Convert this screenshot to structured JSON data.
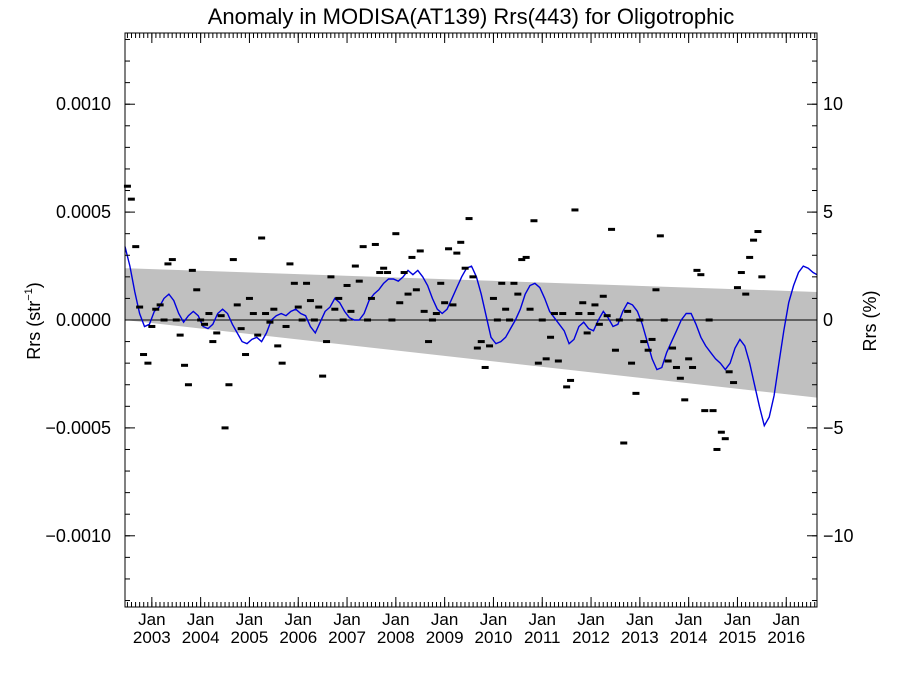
{
  "chart_data": {
    "type": "line",
    "title": "Anomaly in MODISA(AT139) Rrs(443) for Oligotrophic",
    "ylabel_left_base": "Rrs (str",
    "ylabel_left_sup": "−1",
    "ylabel_left_end": ")",
    "ylabel_right": "Rrs (%)",
    "xlim": [
      2002.45,
      2016.63
    ],
    "ylim": [
      -0.00133,
      0.00133
    ],
    "y2lim": [
      -13.3,
      13.3
    ],
    "x_tick_label": "Jan",
    "x_tick_years": [
      "2003",
      "2004",
      "2005",
      "2006",
      "2007",
      "2008",
      "2009",
      "2010",
      "2011",
      "2012",
      "2013",
      "2014",
      "2015",
      "2016"
    ],
    "y_ticks": [
      0.001,
      0.0005,
      0.0,
      -0.0005,
      -0.001
    ],
    "y_tick_labels": [
      "0.0010",
      "0.0005",
      "0.0000",
      "−0.0005",
      "−0.0010"
    ],
    "y2_ticks": [
      10,
      5,
      0,
      -5,
      -10
    ],
    "y2_tick_labels": [
      "10",
      "5",
      "0",
      "−5",
      "−10"
    ],
    "zero_line": 0,
    "band": {
      "upper": [
        [
          2002.45,
          0.00024
        ],
        [
          2016.63,
          0.00013
        ]
      ],
      "lower": [
        [
          2002.45,
          0.0
        ],
        [
          2016.63,
          -0.00036
        ]
      ]
    },
    "series": [
      {
        "color": "#0000dd",
        "points": [
          [
            2002.45,
            0.00034
          ],
          [
            2002.55,
            0.00025
          ],
          [
            2002.65,
            0.00013
          ],
          [
            2002.75,
            3e-05
          ],
          [
            2002.85,
            -3e-05
          ],
          [
            2002.95,
            -2e-05
          ],
          [
            2003.05,
            4e-05
          ],
          [
            2003.15,
            6e-05
          ],
          [
            2003.25,
            0.0001
          ],
          [
            2003.35,
            0.00012
          ],
          [
            2003.45,
            9e-05
          ],
          [
            2003.55,
            3e-05
          ],
          [
            2003.65,
            -1e-05
          ],
          [
            2003.75,
            2e-05
          ],
          [
            2003.85,
            4e-05
          ],
          [
            2003.95,
            2e-05
          ],
          [
            2004.05,
            -3e-05
          ],
          [
            2004.15,
            -4e-05
          ],
          [
            2004.25,
            -2e-05
          ],
          [
            2004.35,
            3e-05
          ],
          [
            2004.45,
            5e-05
          ],
          [
            2004.55,
            3e-05
          ],
          [
            2004.65,
            -2e-05
          ],
          [
            2004.75,
            -6e-05
          ],
          [
            2004.85,
            -0.0001
          ],
          [
            2004.95,
            -0.00011
          ],
          [
            2005.05,
            -9e-05
          ],
          [
            2005.15,
            -8e-05
          ],
          [
            2005.25,
            -0.0001
          ],
          [
            2005.35,
            -6e-05
          ],
          [
            2005.45,
            0.0
          ],
          [
            2005.55,
            2e-05
          ],
          [
            2005.65,
            3e-05
          ],
          [
            2005.75,
            2e-05
          ],
          [
            2005.85,
            4e-05
          ],
          [
            2005.95,
            5e-05
          ],
          [
            2006.05,
            3e-05
          ],
          [
            2006.15,
            2e-05
          ],
          [
            2006.25,
            -3e-05
          ],
          [
            2006.35,
            -6e-05
          ],
          [
            2006.45,
            -1e-05
          ],
          [
            2006.55,
            4e-05
          ],
          [
            2006.65,
            6e-05
          ],
          [
            2006.75,
            0.0001
          ],
          [
            2006.85,
            8e-05
          ],
          [
            2006.95,
            4e-05
          ],
          [
            2007.05,
            1e-05
          ],
          [
            2007.15,
            0.0
          ],
          [
            2007.25,
            0.0
          ],
          [
            2007.35,
            3e-05
          ],
          [
            2007.45,
            9e-05
          ],
          [
            2007.55,
            0.00012
          ],
          [
            2007.65,
            0.00014
          ],
          [
            2007.75,
            0.00017
          ],
          [
            2007.85,
            0.00019
          ],
          [
            2007.95,
            0.00019
          ],
          [
            2008.05,
            0.00018
          ],
          [
            2008.15,
            0.0002
          ],
          [
            2008.25,
            0.00023
          ],
          [
            2008.35,
            0.00021
          ],
          [
            2008.45,
            0.00023
          ],
          [
            2008.55,
            0.0002
          ],
          [
            2008.65,
            0.00016
          ],
          [
            2008.75,
            0.0001
          ],
          [
            2008.85,
            5e-05
          ],
          [
            2008.95,
            3e-05
          ],
          [
            2009.05,
            5e-05
          ],
          [
            2009.15,
            0.0001
          ],
          [
            2009.25,
            0.00015
          ],
          [
            2009.35,
            0.0002
          ],
          [
            2009.45,
            0.00024
          ],
          [
            2009.55,
            0.00025
          ],
          [
            2009.65,
            0.0002
          ],
          [
            2009.75,
            0.00012
          ],
          [
            2009.85,
            2e-05
          ],
          [
            2009.95,
            -8e-05
          ],
          [
            2010.05,
            -0.00011
          ],
          [
            2010.15,
            -0.0001
          ],
          [
            2010.25,
            -8e-05
          ],
          [
            2010.35,
            -4e-05
          ],
          [
            2010.45,
            0.0
          ],
          [
            2010.55,
            5e-05
          ],
          [
            2010.65,
            0.00012
          ],
          [
            2010.75,
            0.00016
          ],
          [
            2010.85,
            0.00017
          ],
          [
            2010.95,
            0.00015
          ],
          [
            2011.05,
            0.0001
          ],
          [
            2011.15,
            4e-05
          ],
          [
            2011.25,
            1e-05
          ],
          [
            2011.35,
            -2e-05
          ],
          [
            2011.45,
            -5e-05
          ],
          [
            2011.55,
            -0.00011
          ],
          [
            2011.65,
            -9e-05
          ],
          [
            2011.75,
            -3e-05
          ],
          [
            2011.85,
            -1e-05
          ],
          [
            2011.95,
            -4e-05
          ],
          [
            2012.05,
            -5e-05
          ],
          [
            2012.15,
            0.0
          ],
          [
            2012.25,
            4e-05
          ],
          [
            2012.35,
            1e-05
          ],
          [
            2012.45,
            -3e-05
          ],
          [
            2012.55,
            -2e-05
          ],
          [
            2012.65,
            4e-05
          ],
          [
            2012.75,
            8e-05
          ],
          [
            2012.85,
            7e-05
          ],
          [
            2012.95,
            4e-05
          ],
          [
            2013.05,
            -2e-05
          ],
          [
            2013.15,
            -0.0001
          ],
          [
            2013.25,
            -0.00018
          ],
          [
            2013.35,
            -0.00023
          ],
          [
            2013.45,
            -0.00022
          ],
          [
            2013.55,
            -0.00015
          ],
          [
            2013.65,
            -0.0001
          ],
          [
            2013.75,
            -5e-05
          ],
          [
            2013.85,
            0.0
          ],
          [
            2013.95,
            3e-05
          ],
          [
            2014.05,
            3e-05
          ],
          [
            2014.15,
            -2e-05
          ],
          [
            2014.25,
            -8e-05
          ],
          [
            2014.35,
            -0.00012
          ],
          [
            2014.45,
            -0.00015
          ],
          [
            2014.55,
            -0.00018
          ],
          [
            2014.65,
            -0.0002
          ],
          [
            2014.75,
            -0.00023
          ],
          [
            2014.85,
            -0.0002
          ],
          [
            2014.95,
            -0.00013
          ],
          [
            2015.05,
            -9e-05
          ],
          [
            2015.15,
            -0.00012
          ],
          [
            2015.25,
            -0.0002
          ],
          [
            2015.35,
            -0.0003
          ],
          [
            2015.45,
            -0.0004
          ],
          [
            2015.55,
            -0.00049
          ],
          [
            2015.65,
            -0.00045
          ],
          [
            2015.75,
            -0.00035
          ],
          [
            2015.85,
            -0.0002
          ],
          [
            2015.95,
            -5e-05
          ],
          [
            2016.05,
            8e-05
          ],
          [
            2016.15,
            0.00016
          ],
          [
            2016.25,
            0.00022
          ],
          [
            2016.35,
            0.00025
          ],
          [
            2016.45,
            0.00024
          ],
          [
            2016.55,
            0.00022
          ],
          [
            2016.63,
            0.00021
          ]
        ]
      }
    ],
    "monthly_marks": [
      [
        2002.5,
        0.00062
      ],
      [
        2002.58,
        0.00056
      ],
      [
        2002.67,
        0.00034
      ],
      [
        2002.75,
        6e-05
      ],
      [
        2002.83,
        -0.00016
      ],
      [
        2002.92,
        -0.0002
      ],
      [
        2003.0,
        -3e-05
      ],
      [
        2003.08,
        5e-05
      ],
      [
        2003.17,
        7e-05
      ],
      [
        2003.25,
        0.0
      ],
      [
        2003.33,
        0.00026
      ],
      [
        2003.42,
        0.00028
      ],
      [
        2003.5,
        0.0
      ],
      [
        2003.58,
        -7e-05
      ],
      [
        2003.67,
        -0.00021
      ],
      [
        2003.75,
        -0.0003
      ],
      [
        2003.83,
        0.00023
      ],
      [
        2003.92,
        0.00014
      ],
      [
        2004.0,
        0.0
      ],
      [
        2004.08,
        -2e-05
      ],
      [
        2004.17,
        3e-05
      ],
      [
        2004.25,
        -0.0001
      ],
      [
        2004.33,
        -6e-05
      ],
      [
        2004.42,
        2e-05
      ],
      [
        2004.5,
        -0.0005
      ],
      [
        2004.58,
        -0.0003
      ],
      [
        2004.67,
        0.00028
      ],
      [
        2004.75,
        7e-05
      ],
      [
        2004.83,
        -4e-05
      ],
      [
        2004.92,
        -0.00016
      ],
      [
        2005.0,
        0.0001
      ],
      [
        2005.08,
        3e-05
      ],
      [
        2005.17,
        -7e-05
      ],
      [
        2005.25,
        0.00038
      ],
      [
        2005.33,
        3e-05
      ],
      [
        2005.42,
        -1e-05
      ],
      [
        2005.5,
        5e-05
      ],
      [
        2005.58,
        -0.00012
      ],
      [
        2005.67,
        -0.0002
      ],
      [
        2005.75,
        -3e-05
      ],
      [
        2005.83,
        0.00026
      ],
      [
        2005.92,
        0.00017
      ],
      [
        2006.0,
        6e-05
      ],
      [
        2006.08,
        0.0
      ],
      [
        2006.17,
        0.00017
      ],
      [
        2006.25,
        9e-05
      ],
      [
        2006.33,
        0.0
      ],
      [
        2006.42,
        6e-05
      ],
      [
        2006.5,
        -0.00026
      ],
      [
        2006.58,
        -0.0001
      ],
      [
        2006.67,
        0.0002
      ],
      [
        2006.75,
        5e-05
      ],
      [
        2006.83,
        0.0001
      ],
      [
        2006.92,
        0.0
      ],
      [
        2007.0,
        0.00016
      ],
      [
        2007.08,
        4e-05
      ],
      [
        2007.17,
        0.00025
      ],
      [
        2007.25,
        0.00018
      ],
      [
        2007.33,
        0.00034
      ],
      [
        2007.42,
        0.0
      ],
      [
        2007.5,
        0.0001
      ],
      [
        2007.58,
        0.00035
      ],
      [
        2007.67,
        0.00022
      ],
      [
        2007.75,
        0.00024
      ],
      [
        2007.83,
        0.00022
      ],
      [
        2007.92,
        0.0
      ],
      [
        2008.0,
        0.0004
      ],
      [
        2008.08,
        8e-05
      ],
      [
        2008.17,
        0.00022
      ],
      [
        2008.25,
        0.00012
      ],
      [
        2008.33,
        0.00029
      ],
      [
        2008.42,
        0.00014
      ],
      [
        2008.5,
        0.00032
      ],
      [
        2008.58,
        4e-05
      ],
      [
        2008.67,
        -0.0001
      ],
      [
        2008.75,
        0.0
      ],
      [
        2008.83,
        3e-05
      ],
      [
        2008.92,
        0.00017
      ],
      [
        2009.0,
        8e-05
      ],
      [
        2009.08,
        0.00033
      ],
      [
        2009.17,
        7e-05
      ],
      [
        2009.25,
        0.00031
      ],
      [
        2009.33,
        0.00036
      ],
      [
        2009.42,
        0.00024
      ],
      [
        2009.5,
        0.00047
      ],
      [
        2009.58,
        0.0002
      ],
      [
        2009.67,
        -0.00013
      ],
      [
        2009.75,
        -0.0001
      ],
      [
        2009.83,
        -0.00022
      ],
      [
        2009.92,
        -0.00012
      ],
      [
        2010.0,
        0.0001
      ],
      [
        2010.08,
        0.0
      ],
      [
        2010.17,
        0.00017
      ],
      [
        2010.25,
        5e-05
      ],
      [
        2010.33,
        0.0
      ],
      [
        2010.42,
        0.00017
      ],
      [
        2010.5,
        0.00012
      ],
      [
        2010.58,
        0.00028
      ],
      [
        2010.67,
        0.00029
      ],
      [
        2010.75,
        5e-05
      ],
      [
        2010.83,
        0.00046
      ],
      [
        2010.92,
        -0.0002
      ],
      [
        2011.0,
        0.0
      ],
      [
        2011.08,
        -0.00018
      ],
      [
        2011.17,
        -8e-05
      ],
      [
        2011.25,
        3e-05
      ],
      [
        2011.33,
        -0.00019
      ],
      [
        2011.42,
        3e-05
      ],
      [
        2011.5,
        -0.00031
      ],
      [
        2011.58,
        -0.00028
      ],
      [
        2011.67,
        0.00051
      ],
      [
        2011.75,
        3e-05
      ],
      [
        2011.83,
        8e-05
      ],
      [
        2011.92,
        -6e-05
      ],
      [
        2012.0,
        3e-05
      ],
      [
        2012.08,
        7e-05
      ],
      [
        2012.17,
        -2e-05
      ],
      [
        2012.25,
        0.00011
      ],
      [
        2012.33,
        2e-05
      ],
      [
        2012.42,
        0.00042
      ],
      [
        2012.5,
        -0.00014
      ],
      [
        2012.58,
        0.0
      ],
      [
        2012.67,
        -0.00057
      ],
      [
        2012.75,
        4e-05
      ],
      [
        2012.83,
        -0.0002
      ],
      [
        2012.92,
        -0.00034
      ],
      [
        2013.0,
        0.0
      ],
      [
        2013.08,
        -0.0001
      ],
      [
        2013.17,
        -0.00014
      ],
      [
        2013.25,
        -9e-05
      ],
      [
        2013.33,
        0.00014
      ],
      [
        2013.42,
        0.00039
      ],
      [
        2013.5,
        0.0
      ],
      [
        2013.58,
        -0.00019
      ],
      [
        2013.67,
        -0.00013
      ],
      [
        2013.75,
        -0.00022
      ],
      [
        2013.83,
        -0.00027
      ],
      [
        2013.92,
        -0.00037
      ],
      [
        2014.0,
        -0.00018
      ],
      [
        2014.08,
        -0.00022
      ],
      [
        2014.17,
        0.00023
      ],
      [
        2014.25,
        0.00021
      ],
      [
        2014.33,
        -0.00042
      ],
      [
        2014.42,
        0.0
      ],
      [
        2014.5,
        -0.00042
      ],
      [
        2014.58,
        -0.0006
      ],
      [
        2014.67,
        -0.00052
      ],
      [
        2014.75,
        -0.00055
      ],
      [
        2014.83,
        -0.00024
      ],
      [
        2014.92,
        -0.00029
      ],
      [
        2015.0,
        0.00015
      ],
      [
        2015.08,
        0.00022
      ],
      [
        2015.17,
        0.00012
      ],
      [
        2015.25,
        0.00029
      ],
      [
        2015.33,
        0.00037
      ],
      [
        2015.42,
        0.00041
      ],
      [
        2015.5,
        0.0002
      ]
    ]
  }
}
